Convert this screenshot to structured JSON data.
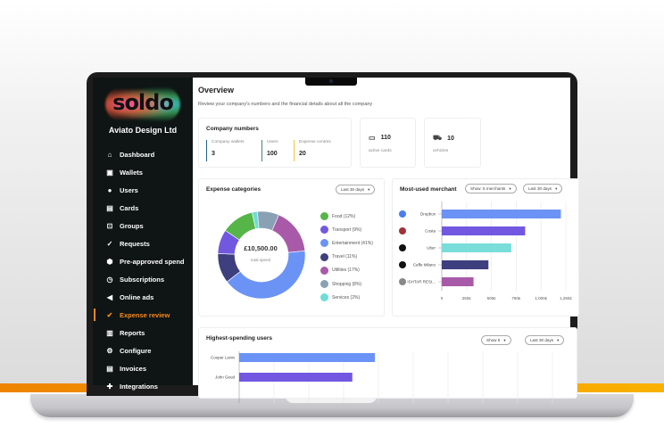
{
  "sidebar": {
    "logo": "soldo",
    "company": "Aviato Design Ltd",
    "items": [
      {
        "label": "Dashboard",
        "icon": "home-icon"
      },
      {
        "label": "Wallets",
        "icon": "wallet-icon"
      },
      {
        "label": "Users",
        "icon": "user-icon"
      },
      {
        "label": "Cards",
        "icon": "cards-icon"
      },
      {
        "label": "Groups",
        "icon": "groups-icon"
      },
      {
        "label": "Requests",
        "icon": "requests-icon"
      },
      {
        "label": "Pre-approved spend",
        "icon": "pre-approved-icon"
      },
      {
        "label": "Subscriptions",
        "icon": "clock-icon"
      },
      {
        "label": "Online ads",
        "icon": "megaphone-icon"
      },
      {
        "label": "Expense review",
        "icon": "check-icon",
        "active": true
      },
      {
        "label": "Reports",
        "icon": "bar-chart-icon"
      },
      {
        "label": "Configure",
        "icon": "gear-icon"
      },
      {
        "label": "Invoices",
        "icon": "invoice-icon"
      },
      {
        "label": "Integrations",
        "icon": "puzzle-icon"
      }
    ],
    "active_color": "#f7891d"
  },
  "main": {
    "title": "Overview",
    "subtitle": "Review your company's numbers and the financial details about all the company",
    "company_numbers": {
      "title": "Company numbers",
      "stats": [
        {
          "label": "Company wallets",
          "value": "3",
          "color": "#1f5f8b"
        },
        {
          "label": "Users",
          "value": "100",
          "color": "#3c8a6e"
        },
        {
          "label": "Expense centres",
          "value": "20",
          "color": "#f4c430"
        }
      ]
    },
    "active_cards": {
      "value": "110",
      "label": "active cards"
    },
    "vehicles": {
      "value": "10",
      "label": "vehicles"
    },
    "expense_categories": {
      "title": "Expense categories",
      "period": "Last 30 days",
      "total": "£10,500.00",
      "total_label": "total spend"
    },
    "merchants": {
      "title": "Most-used merchant",
      "show": "Show: 5 merchants",
      "period": "Last 30 days"
    },
    "users": {
      "title": "Highest-spending users",
      "show": "Show 5",
      "period": "Last 30 days"
    }
  },
  "chart_data": [
    {
      "type": "pie",
      "title": "Expense categories",
      "categories": [
        "Services (2%)",
        "Shopping (8%)",
        "Utilities (17%)",
        "Entertainment (41%)",
        "Travel (11%)",
        "Transport (9%)",
        "Food (12%)"
      ],
      "legend": [
        "Food (12%)",
        "Transport (9%)",
        "Entertainment (41%)",
        "Travel (11%)",
        "Utilities (17%)",
        "Shopping (8%)",
        "Services (2%)"
      ],
      "values": [
        2,
        8,
        17,
        41,
        11,
        9,
        12
      ],
      "colors": [
        "#6fdcd9",
        "#8aa0b5",
        "#a85aa8",
        "#6b93f5",
        "#3d3f7e",
        "#7258e0",
        "#55b548"
      ],
      "legend_colors": [
        "#55b548",
        "#7258e0",
        "#6b93f5",
        "#3d3f7e",
        "#a85aa8",
        "#8aa0b5",
        "#6fdcd9"
      ]
    },
    {
      "type": "bar",
      "orientation": "horizontal",
      "title": "Most-used merchant",
      "categories": [
        "Dropbox",
        "Costa",
        "Uber",
        "Caffe Milano",
        "ISHTAR RESt..."
      ],
      "values": [
        1200,
        840,
        700,
        470,
        320
      ],
      "colors": [
        "#6b93f5",
        "#7258e0",
        "#79ddd9",
        "#3d3f7e",
        "#a85aa8"
      ],
      "xlim": [
        0,
        1250
      ],
      "xticks": [
        "0",
        "250£",
        "500£",
        "750£",
        "1,000£",
        "1,250£"
      ],
      "grid": true
    },
    {
      "type": "bar",
      "orientation": "horizontal",
      "title": "Highest-spending users",
      "categories": [
        "Cooper Lenin",
        "John Geud"
      ],
      "values": [
        3.9,
        3.25
      ],
      "colors": [
        "#6b93f5",
        "#7258e0"
      ],
      "grid": true
    }
  ]
}
